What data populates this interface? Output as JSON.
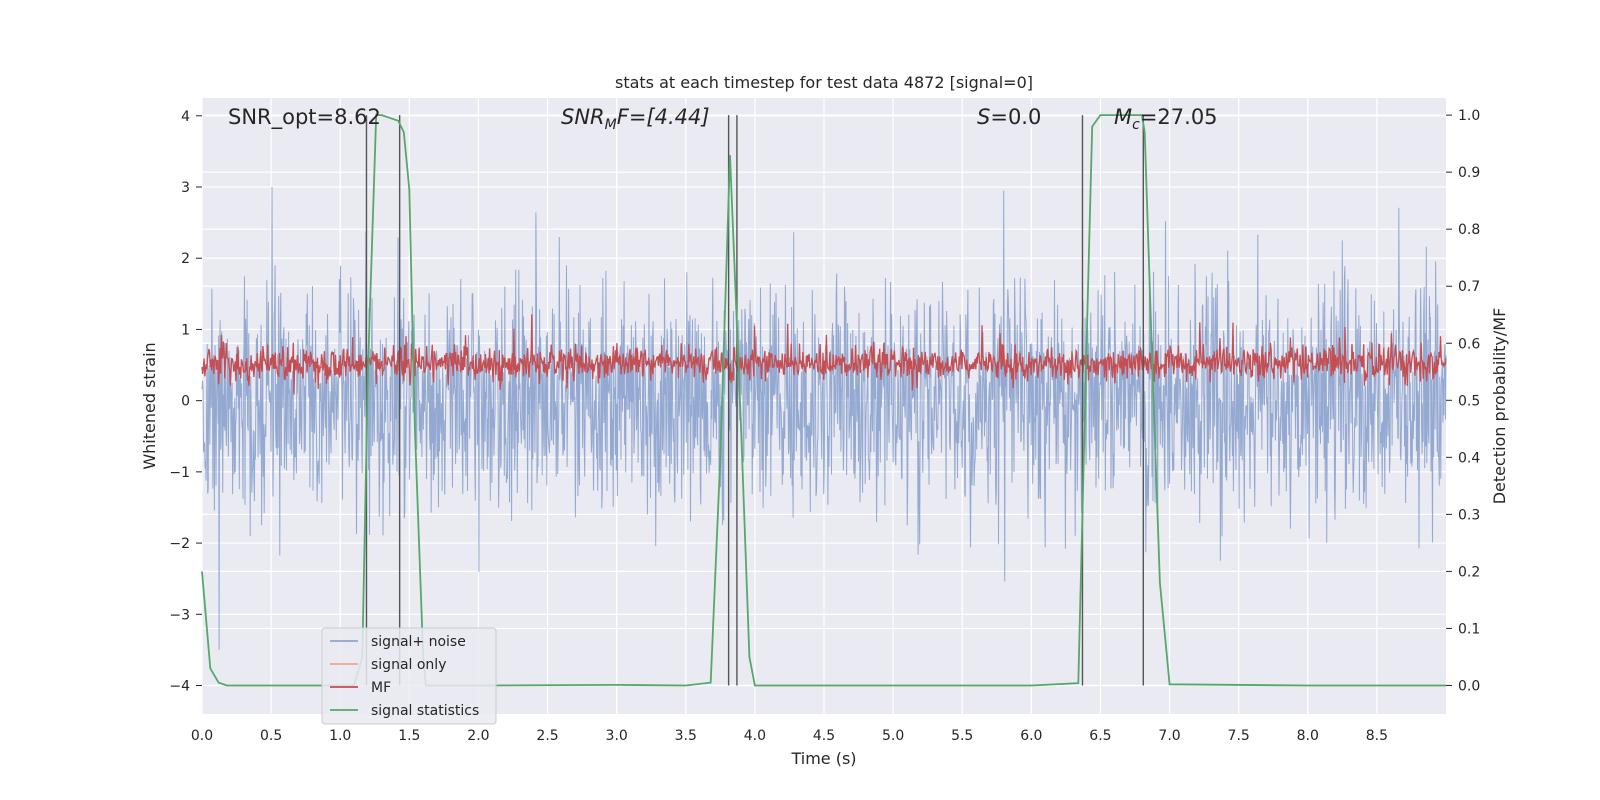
{
  "chart_data": {
    "type": "line",
    "title": "stats at each timestep for test data 4872 [signal=0]",
    "xlabel": "Time (s)",
    "ylabel_left": "Whitened strain",
    "ylabel_right": "Detection probability/MF",
    "xlim": [
      0.0,
      9.0
    ],
    "ylim_left": [
      -4.4,
      4.25
    ],
    "ylim_right": [
      -0.05,
      1.03
    ],
    "xticks": [
      "0.0",
      "0.5",
      "1.0",
      "1.5",
      "2.0",
      "2.5",
      "3.0",
      "3.5",
      "4.0",
      "4.5",
      "5.0",
      "5.5",
      "6.0",
      "6.5",
      "7.0",
      "7.5",
      "8.0",
      "8.5"
    ],
    "yticks_left": [
      "−4",
      "−3",
      "−2",
      "−1",
      "0",
      "1",
      "2",
      "3",
      "4"
    ],
    "yticks_right": [
      "0.0",
      "0.1",
      "0.2",
      "0.3",
      "0.4",
      "0.5",
      "0.6",
      "0.7",
      "0.8",
      "0.9",
      "1.0"
    ],
    "grid": true,
    "legend_position": "lower-left",
    "annotations": {
      "snr_opt": "SNR_opt=8.62",
      "snr_mf_base": "SNR",
      "snr_mf_sub": "M",
      "snr_mf_rest": "F=[4.44]",
      "s_base": "S",
      "s_rest": "=0.0",
      "mc_base": "M",
      "mc_sub": "c",
      "mc_rest": "=27.05"
    },
    "series": [
      {
        "name": "signal+ noise",
        "color": "#8fa5cf",
        "axis": "left",
        "kind": "noise",
        "amplitude_range": [
          -3.5,
          3.0
        ]
      },
      {
        "name": "signal only",
        "color": "#f0a685",
        "axis": "left",
        "kind": "line"
      },
      {
        "name": "MF",
        "color": "#c44e52",
        "axis": "right",
        "kind": "noise",
        "amplitude_range": [
          0.51,
          0.62
        ]
      },
      {
        "name": "signal statistics",
        "color": "#55a868",
        "axis": "right",
        "kind": "line",
        "x": [
          0.0,
          0.06,
          0.12,
          0.18,
          0.3,
          0.6,
          1.1,
          1.16,
          1.2,
          1.26,
          1.3,
          1.42,
          1.46,
          1.5,
          1.54,
          1.6,
          1.62,
          2.0,
          3.0,
          3.5,
          3.68,
          3.75,
          3.82,
          3.9,
          3.96,
          4.0,
          4.5,
          5.0,
          6.0,
          6.34,
          6.4,
          6.44,
          6.5,
          6.8,
          6.82,
          6.87,
          6.93,
          7.0,
          8.0,
          9.0
        ],
        "y": [
          0.2,
          0.03,
          0.005,
          0.0,
          0.0,
          0.0,
          0.0,
          0.05,
          0.55,
          1.0,
          1.0,
          0.99,
          0.97,
          0.87,
          0.45,
          0.05,
          0.0,
          0.0,
          0.001,
          0.0,
          0.005,
          0.4,
          0.93,
          0.45,
          0.05,
          0.0,
          0.0,
          0.0,
          0.0,
          0.004,
          0.6,
          0.98,
          1.0,
          1.0,
          0.97,
          0.6,
          0.18,
          0.002,
          0.0,
          0.0
        ]
      }
    ],
    "vertical_markers": [
      1.19,
      1.43,
      3.81,
      3.87,
      6.37,
      6.81
    ]
  }
}
